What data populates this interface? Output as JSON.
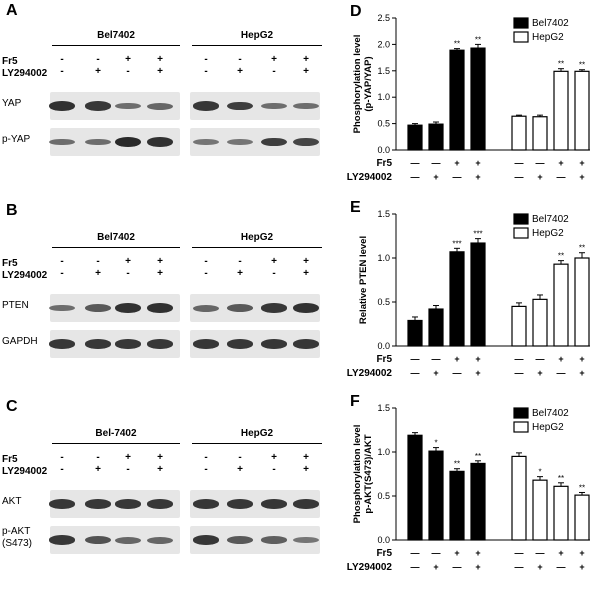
{
  "panels": {
    "A": {
      "label": "A",
      "groups": [
        "Bel7402",
        "HepG2"
      ],
      "rows": [
        {
          "label": "Fr5",
          "signs": [
            "-",
            "-",
            "+",
            "+",
            "-",
            "-",
            "+",
            "+"
          ]
        },
        {
          "label": "LY294002",
          "signs": [
            "-",
            "+",
            "-",
            "+",
            "-",
            "+",
            "-",
            "+"
          ]
        }
      ],
      "blots": [
        "YAP",
        "p-YAP"
      ]
    },
    "B": {
      "label": "B",
      "groups": [
        "Bel7402",
        "HepG2"
      ],
      "rows": [
        {
          "label": "Fr5",
          "signs": [
            "-",
            "-",
            "+",
            "+",
            "-",
            "-",
            "+",
            "+"
          ]
        },
        {
          "label": "LY294002",
          "signs": [
            "-",
            "+",
            "-",
            "+",
            "-",
            "+",
            "-",
            "+"
          ]
        }
      ],
      "blots": [
        "PTEN",
        "GAPDH"
      ]
    },
    "C": {
      "label": "C",
      "groups": [
        "Bel-7402",
        "HepG2"
      ],
      "rows": [
        {
          "label": "Fr5",
          "signs": [
            "-",
            "-",
            "+",
            "+",
            "-",
            "-",
            "+",
            "+"
          ]
        },
        {
          "label": "LY294002",
          "signs": [
            "-",
            "+",
            "-",
            "+",
            "-",
            "+",
            "-",
            "+"
          ]
        }
      ],
      "blots": [
        "AKT",
        "p-AKT\n(S473)"
      ]
    }
  },
  "chart_data": [
    {
      "panel": "D",
      "type": "bar",
      "ylabel": "Phosphorylation level\n(p-YAP/YAP)",
      "ylim": [
        0,
        2.5
      ],
      "yticks": [
        0,
        0.5,
        1.0,
        1.5,
        2.0,
        2.5
      ],
      "ytick_labels": [
        "0.0",
        "0.5",
        "1.0",
        "1.5",
        "2.0",
        "2.5"
      ],
      "legend": [
        "Bel7402",
        "HepG2"
      ],
      "series": [
        {
          "name": "Bel7402",
          "fill": "#000000",
          "values": [
            0.47,
            0.49,
            1.89,
            1.93
          ],
          "errors": [
            0.03,
            0.04,
            0.03,
            0.07
          ],
          "sig": [
            "",
            "",
            "**",
            "**"
          ]
        },
        {
          "name": "HepG2",
          "fill": "#ffffff",
          "values": [
            0.64,
            0.63,
            1.49,
            1.49
          ],
          "errors": [
            0.02,
            0.03,
            0.05,
            0.03
          ],
          "sig": [
            "",
            "",
            "**",
            "**"
          ]
        }
      ],
      "conditions": [
        {
          "label": "Fr5",
          "signs": [
            "—",
            "—",
            "+",
            "+",
            "—",
            "—",
            "+",
            "+"
          ]
        },
        {
          "label": "LY294002",
          "signs": [
            "—",
            "+",
            "—",
            "+",
            "—",
            "+",
            "—",
            "+"
          ]
        }
      ]
    },
    {
      "panel": "E",
      "type": "bar",
      "ylabel": "Relative PTEN level",
      "ylim": [
        0,
        1.5
      ],
      "yticks": [
        0,
        0.5,
        1.0,
        1.5
      ],
      "ytick_labels": [
        "0.0",
        "0.5",
        "1.0",
        "1.5"
      ],
      "legend": [
        "Bel7402",
        "HepG2"
      ],
      "series": [
        {
          "name": "Bel7402",
          "fill": "#000000",
          "values": [
            0.29,
            0.42,
            1.07,
            1.17
          ],
          "errors": [
            0.04,
            0.04,
            0.04,
            0.05
          ],
          "sig": [
            "",
            "",
            "***",
            "***"
          ]
        },
        {
          "name": "HepG2",
          "fill": "#ffffff",
          "values": [
            0.45,
            0.53,
            0.93,
            1.0
          ],
          "errors": [
            0.04,
            0.05,
            0.04,
            0.06
          ],
          "sig": [
            "",
            "",
            "**",
            "**"
          ]
        }
      ],
      "conditions": [
        {
          "label": "Fr5",
          "signs": [
            "—",
            "—",
            "+",
            "+",
            "—",
            "—",
            "+",
            "+"
          ]
        },
        {
          "label": "LY294002",
          "signs": [
            "—",
            "+",
            "—",
            "+",
            "—",
            "+",
            "—",
            "+"
          ]
        }
      ]
    },
    {
      "panel": "F",
      "type": "bar",
      "ylabel": "Phosphorylation level\np-AKT(S473)/AKT",
      "ylim": [
        0,
        1.5
      ],
      "yticks": [
        0,
        0.5,
        1.0,
        1.5
      ],
      "ytick_labels": [
        "0.0",
        "0.5",
        "1.0",
        "1.5"
      ],
      "legend": [
        "Bel7402",
        "HepG2"
      ],
      "series": [
        {
          "name": "Bel7402",
          "fill": "#000000",
          "values": [
            1.19,
            1.01,
            0.78,
            0.87
          ],
          "errors": [
            0.03,
            0.04,
            0.03,
            0.03
          ],
          "sig": [
            "",
            "*",
            "**",
            "**"
          ]
        },
        {
          "name": "HepG2",
          "fill": "#ffffff",
          "values": [
            0.95,
            0.68,
            0.61,
            0.51
          ],
          "errors": [
            0.04,
            0.04,
            0.04,
            0.03
          ],
          "sig": [
            "",
            "*",
            "**",
            "**"
          ]
        }
      ],
      "conditions": [
        {
          "label": "Fr5",
          "signs": [
            "—",
            "—",
            "+",
            "+",
            "—",
            "—",
            "+",
            "+"
          ]
        },
        {
          "label": "LY294002",
          "signs": [
            "—",
            "+",
            "—",
            "+",
            "—",
            "+",
            "—",
            "+"
          ]
        }
      ]
    }
  ]
}
